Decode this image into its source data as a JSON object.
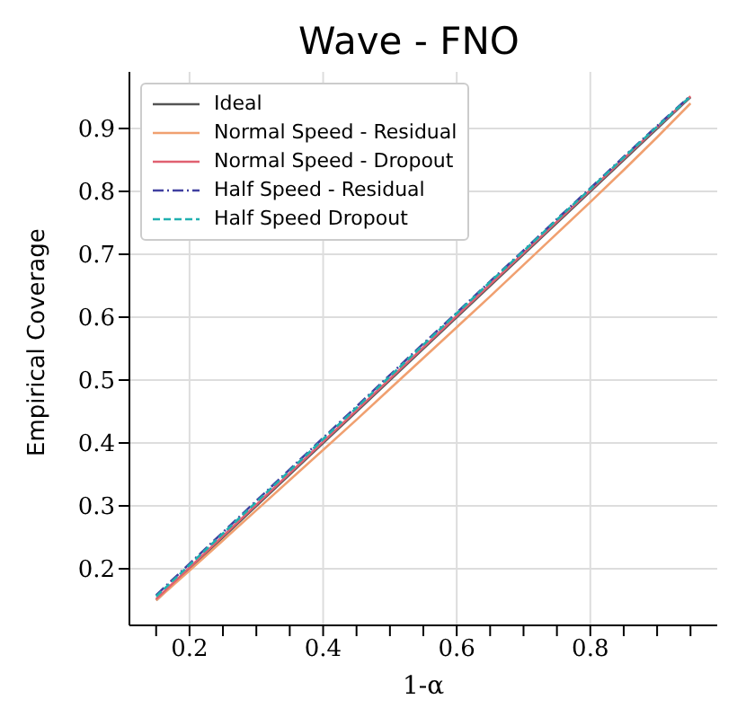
{
  "chart_data": {
    "type": "line",
    "title": "Wave - FNO",
    "xlabel": "1-α",
    "ylabel": "Empirical Coverage",
    "x": [
      0.15,
      0.2,
      0.25,
      0.3,
      0.35,
      0.4,
      0.45,
      0.5,
      0.55,
      0.6,
      0.65,
      0.7,
      0.75,
      0.8,
      0.85,
      0.9,
      0.95
    ],
    "series": [
      {
        "name": "Ideal",
        "color": "#555555",
        "line_style": "solid",
        "values": [
          0.15,
          0.2,
          0.25,
          0.3,
          0.35,
          0.4,
          0.45,
          0.5,
          0.55,
          0.6,
          0.65,
          0.7,
          0.75,
          0.8,
          0.85,
          0.9,
          0.95
        ]
      },
      {
        "name": "Normal Speed - Residual",
        "color": "#f0a070",
        "line_style": "solid",
        "values": [
          0.15,
          0.197,
          0.245,
          0.293,
          0.341,
          0.389,
          0.437,
          0.486,
          0.535,
          0.584,
          0.633,
          0.683,
          0.733,
          0.783,
          0.834,
          0.886,
          0.94
        ]
      },
      {
        "name": "Normal Speed - Dropout",
        "color": "#e06070",
        "line_style": "solid",
        "values": [
          0.152,
          0.202,
          0.252,
          0.302,
          0.352,
          0.402,
          0.452,
          0.502,
          0.552,
          0.602,
          0.652,
          0.702,
          0.752,
          0.802,
          0.852,
          0.902,
          0.951
        ]
      },
      {
        "name": "Half Speed - Residual",
        "color": "#4040a0",
        "line_style": "dashdot",
        "values": [
          0.158,
          0.208,
          0.258,
          0.308,
          0.358,
          0.408,
          0.458,
          0.508,
          0.558,
          0.607,
          0.657,
          0.706,
          0.756,
          0.805,
          0.855,
          0.904,
          0.952
        ]
      },
      {
        "name": "Half Speed Dropout",
        "color": "#20b0b0",
        "line_style": "dashed",
        "values": [
          0.156,
          0.206,
          0.256,
          0.306,
          0.356,
          0.406,
          0.456,
          0.506,
          0.556,
          0.606,
          0.656,
          0.705,
          0.755,
          0.804,
          0.854,
          0.903,
          0.951
        ]
      }
    ],
    "xlim": [
      0.11,
      0.99
    ],
    "ylim": [
      0.11,
      0.99
    ],
    "xticks": [
      {
        "value": 0.15,
        "label": null
      },
      0.2,
      {
        "value": 0.25,
        "label": null
      },
      {
        "value": 0.3,
        "label": null
      },
      {
        "value": 0.35,
        "label": null
      },
      0.4,
      {
        "value": 0.45,
        "label": null
      },
      {
        "value": 0.5,
        "label": null
      },
      {
        "value": 0.55,
        "label": null
      },
      0.6,
      {
        "value": 0.65,
        "label": null
      },
      {
        "value": 0.7,
        "label": null
      },
      {
        "value": 0.75,
        "label": null
      },
      0.8,
      {
        "value": 0.85,
        "label": null
      },
      {
        "value": 0.9,
        "label": null
      },
      {
        "value": 0.95,
        "label": null
      }
    ],
    "yticks": [
      0.2,
      0.3,
      0.4,
      0.5,
      0.6,
      0.7,
      0.8,
      0.9
    ],
    "grid": true,
    "legend": "top left",
    "marker": "none"
  }
}
